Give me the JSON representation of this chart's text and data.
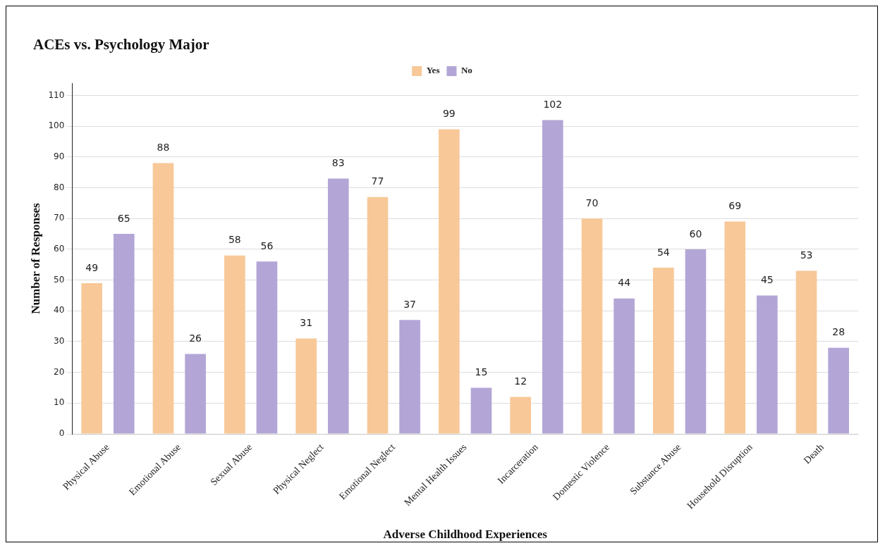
{
  "chart_data": {
    "type": "bar",
    "title": "ACEs vs. Psychology Major",
    "xlabel": "Adverse Childhood Experiences",
    "ylabel": "Number of Responses",
    "categories": [
      "Physical Abuse",
      "Emotional Abuse",
      "Sexual Abuse",
      "Physical Neglect",
      "Emotional Neglect",
      "Mental Health Issues",
      "Incarceration",
      "Domestic Violence",
      "Substance Abuse",
      "Household Disruption",
      "Death"
    ],
    "series": [
      {
        "name": "Yes",
        "color": "#f8c898",
        "values": [
          49,
          88,
          58,
          31,
          77,
          99,
          12,
          70,
          54,
          69,
          53
        ]
      },
      {
        "name": "No",
        "color": "#b3a6d6",
        "values": [
          65,
          26,
          56,
          83,
          37,
          15,
          102,
          44,
          60,
          45,
          28
        ]
      }
    ],
    "ylim": [
      0,
      114
    ],
    "yticks": [
      0,
      10,
      20,
      30,
      40,
      50,
      60,
      70,
      80,
      90,
      100,
      110
    ],
    "grid": "y",
    "legend": "top",
    "data_labels": true
  }
}
